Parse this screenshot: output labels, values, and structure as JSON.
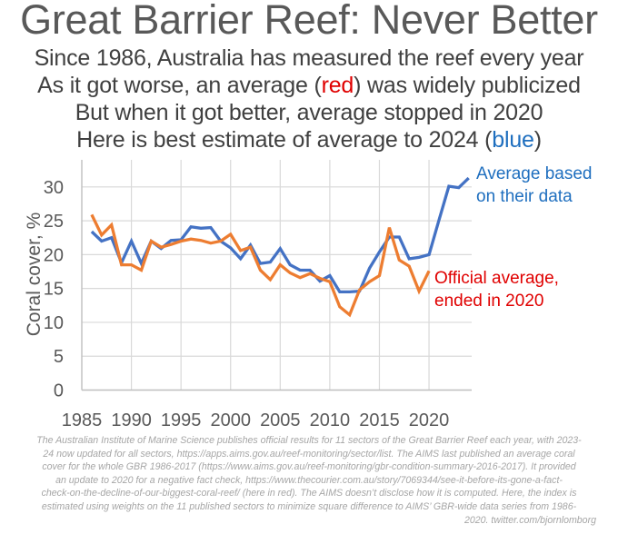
{
  "header": {
    "title": "Great Barrier Reef: Never Better",
    "lines": [
      {
        "parts": [
          {
            "text": "Since 1986, Australia has measured the reef every year",
            "style": "plain"
          }
        ]
      },
      {
        "parts": [
          {
            "text": "As it got worse, an average (",
            "style": "plain"
          },
          {
            "text": "red",
            "style": "red"
          },
          {
            "text": ") was widely publicized",
            "style": "plain"
          }
        ]
      },
      {
        "parts": [
          {
            "text": "But when it got better, average stopped in 2020",
            "style": "plain"
          }
        ]
      },
      {
        "parts": [
          {
            "text": "Here is best estimate of average to 2024 (",
            "style": "plain"
          },
          {
            "text": "blue",
            "style": "blue"
          },
          {
            "text": ")",
            "style": "plain"
          }
        ]
      }
    ]
  },
  "chart_data": {
    "type": "line",
    "title": "Great Barrier Reef: Never Better",
    "xlabel": "",
    "ylabel": "Coral cover, %",
    "xlim": [
      1985,
      2024.3
    ],
    "ylim": [
      0,
      34
    ],
    "grid": true,
    "xticks": [
      1985,
      1990,
      1995,
      2000,
      2005,
      2010,
      2015,
      2020
    ],
    "yticks": [
      0,
      5,
      10,
      15,
      20,
      25,
      30
    ],
    "colors": {
      "blue_series": "#4472c4",
      "orange_series": "#ed7d31",
      "blue_annotation": "#1f6fbf",
      "red_annotation": "#e00000"
    },
    "series": [
      {
        "name": "Average based on their data",
        "color": "#4472c4",
        "x": [
          1986,
          1987,
          1988,
          1989,
          1990,
          1991,
          1992,
          1993,
          1994,
          1995,
          1996,
          1997,
          1998,
          1999,
          2000,
          2001,
          2002,
          2003,
          2004,
          2005,
          2006,
          2007,
          2008,
          2009,
          2010,
          2011,
          2012,
          2013,
          2014,
          2015,
          2016,
          2017,
          2018,
          2019,
          2020,
          2021,
          2022,
          2023,
          2024
        ],
        "values": [
          23.4,
          22.0,
          22.5,
          18.8,
          22.0,
          18.7,
          22.0,
          20.9,
          22.1,
          22.2,
          24.1,
          23.9,
          24.0,
          22.0,
          21.0,
          19.4,
          21.4,
          18.7,
          18.9,
          20.9,
          18.5,
          17.7,
          17.7,
          16.1,
          16.9,
          14.5,
          14.5,
          14.6,
          18.0,
          20.4,
          22.6,
          22.6,
          19.4,
          19.6,
          20.0,
          25.1,
          30.1,
          29.9,
          31.3
        ]
      },
      {
        "name": "Official average, ended in 2020",
        "color": "#ed7d31",
        "x": [
          1986,
          1987,
          1988,
          1989,
          1990,
          1991,
          1992,
          1993,
          1994,
          1995,
          1996,
          1997,
          1998,
          1999,
          2000,
          2001,
          2002,
          2003,
          2004,
          2005,
          2006,
          2007,
          2008,
          2009,
          2010,
          2011,
          2012,
          2013,
          2014,
          2015,
          2016,
          2017,
          2018,
          2019,
          2020
        ],
        "values": [
          25.9,
          22.9,
          24.4,
          18.5,
          18.5,
          17.7,
          22.0,
          21.1,
          21.5,
          22.0,
          22.3,
          22.1,
          21.7,
          22.0,
          23.0,
          20.6,
          21.1,
          17.7,
          16.3,
          18.5,
          17.3,
          16.6,
          17.2,
          16.5,
          16.0,
          12.3,
          11.1,
          14.8,
          16.0,
          16.9,
          24.0,
          19.2,
          18.3,
          14.6,
          17.6
        ]
      }
    ],
    "annotations": [
      {
        "lines": [
          "Average based",
          "on their data"
        ],
        "color": "blue",
        "series": 0
      },
      {
        "lines": [
          "Official average,",
          "ended in 2020"
        ],
        "color": "red",
        "series": 1
      }
    ]
  },
  "footnote": {
    "lines": [
      "The Australian Institute of Marine Science publishes official results for 11 sectors of the Great Barrier Reef each year, with 2023-",
      "24 now updated for all sectors, https://apps.aims.gov.au/reef-monitoring/sector/list. The AIMS last published an average coral",
      "cover for the whole GBR 1986-2017 (https://www.aims.gov.au/reef-monitoring/gbr-condition-summary-2016-2017). It provided",
      "an update to 2020 for a negative fact check, https://www.thecourier.com.au/story/7069344/see-it-before-its-gone-a-fact-",
      "check-on-the-decline-of-our-biggest-coral-reef/ (here in red). The AIMS doesn’t disclose how it is computed. Here, the index is",
      "estimated using weights on the 11 published sectors to minimize square difference to AIMS’ GBR-wide data series from 1986-",
      "2020. twitter.com/bjornlomborg"
    ]
  }
}
